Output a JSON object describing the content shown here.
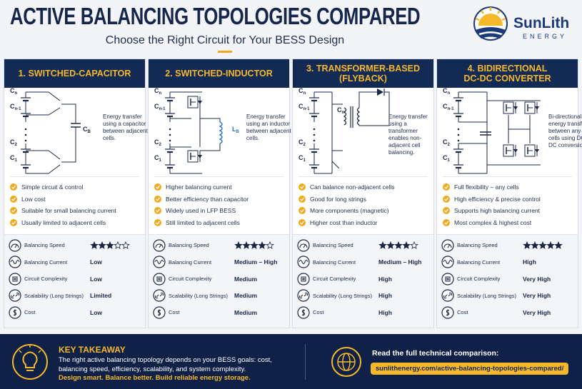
{
  "header": {
    "title": "ACTIVE BALANCING TOPOLOGIES COMPARED",
    "subtitle": "Choose the Right Circuit for Your BESS Design",
    "logo_name": "SunLith",
    "logo_tag": "ENERGY"
  },
  "rating_scale": 5,
  "columns": [
    {
      "title": [
        "1. SWITCHED-CAPACITOR"
      ],
      "circuit_labels": [
        {
          "main": "C",
          "sub": "n"
        },
        {
          "main": "C",
          "sub": "n-1"
        },
        {
          "main": "C",
          "sub": "2"
        },
        {
          "main": "C",
          "sub": "1"
        },
        {
          "main": "C",
          "sub": "B"
        }
      ],
      "description": "Energy transfer using a capacitor between adjacent cells.",
      "bullets": [
        "Simple circuit & control",
        "Low cost",
        "Suitable for small balancing current",
        "Usually limited to adjacent cells"
      ],
      "metrics": [
        {
          "label": "Balancing Speed",
          "stars": 3
        },
        {
          "label": "Balancing Current",
          "value": "Low"
        },
        {
          "label": "Circuit Complexity",
          "value": "Low"
        },
        {
          "label": "Scalability (Long Strings)",
          "value": "Limited"
        },
        {
          "label": "Cost",
          "value": "Low"
        }
      ]
    },
    {
      "title": [
        "2. SWITCHED-INDUCTOR"
      ],
      "circuit_labels": [
        {
          "main": "C",
          "sub": "n"
        },
        {
          "main": "C",
          "sub": "n-1"
        },
        {
          "main": "C",
          "sub": "2"
        },
        {
          "main": "C",
          "sub": "1"
        },
        {
          "main": "L",
          "sub": "B"
        }
      ],
      "description": "Energy transfer using an inductor between adjacent cells.",
      "bullets": [
        "Higher balancing current",
        "Better efficiency than capacitor",
        "Widely used in LFP BESS",
        "Still limited to adjacent cells"
      ],
      "metrics": [
        {
          "label": "Balancing Speed",
          "stars": 4
        },
        {
          "label": "Balancing Current",
          "value": "Medium – High"
        },
        {
          "label": "Circuit Complexity",
          "value": "Medium"
        },
        {
          "label": "Scalability (Long Strings)",
          "value": "Medium"
        },
        {
          "label": "Cost",
          "value": "Medium"
        }
      ]
    },
    {
      "title": [
        "3. TRANSFORMER-BASED",
        "(FLYBACK)"
      ],
      "circuit_labels": [
        {
          "main": "C",
          "sub": "n"
        },
        {
          "main": "C",
          "sub": "n-1"
        },
        {
          "main": "C",
          "sub": "2"
        },
        {
          "main": "C",
          "sub": "1"
        },
        {
          "main": "C",
          "sub": "n"
        }
      ],
      "description": "Energy transfer using a transformer enables non-adjacent cell balancing.",
      "bullets": [
        "Can balance non-adjacent cells",
        "Good for long strings",
        "More components (magnetic)",
        "Higher cost than inductor"
      ],
      "metrics": [
        {
          "label": "Balancing Speed",
          "stars": 4
        },
        {
          "label": "Balancing Current",
          "value": "Medium – High"
        },
        {
          "label": "Circuit Complexity",
          "value": "High"
        },
        {
          "label": "Scalability (Long Strings)",
          "value": "High"
        },
        {
          "label": "Cost",
          "value": "High"
        }
      ]
    },
    {
      "title": [
        "4. BIDIRECTIONAL",
        "DC-DC CONVERTER"
      ],
      "circuit_labels": [
        {
          "main": "C",
          "sub": "n"
        },
        {
          "main": "C",
          "sub": "n-1"
        },
        {
          "main": "C",
          "sub": "2"
        },
        {
          "main": "C",
          "sub": "1"
        }
      ],
      "description": "Bi-directional energy transfer between any cells using DC-DC conversion.",
      "bullets": [
        "Full flexibility – any cells",
        "High efficiency & precise control",
        "Supports high balancing current",
        "Most complex & highest cost"
      ],
      "metrics": [
        {
          "label": "Balancing Speed",
          "stars": 5
        },
        {
          "label": "Balancing Current",
          "value": "High"
        },
        {
          "label": "Circuit Complexity",
          "value": "Very High"
        },
        {
          "label": "Scalability (Long Strings)",
          "value": "Very High"
        },
        {
          "label": "Cost",
          "value": "Very High"
        }
      ]
    }
  ],
  "footer": {
    "heading": "KEY TAKEAWAY",
    "body": "The right active balancing topology depends on your BESS goals: cost, balancing speed, efficiency, scalability, and system complexity.",
    "tagline": "Design smart. Balance better. Build reliable energy storage.",
    "cta": "Read the full technical comparison:",
    "url": "sunlithenergy.com/active-balancing-topologies-compared/"
  }
}
